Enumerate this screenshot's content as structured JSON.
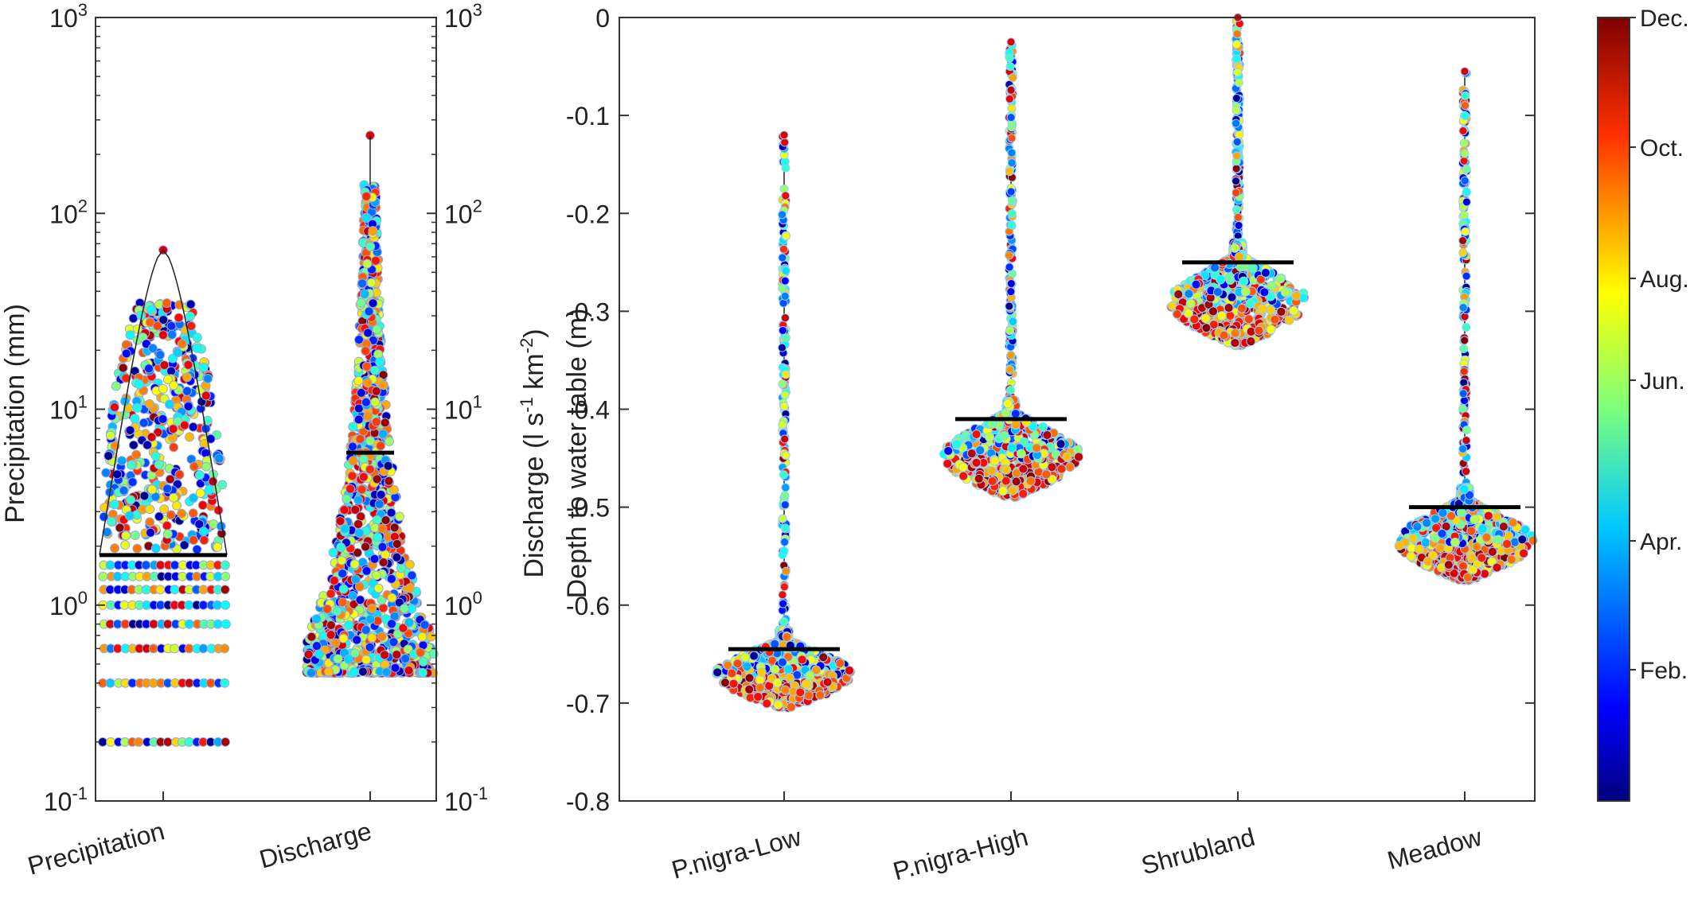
{
  "chart_data": [
    {
      "type": "scatter",
      "subtype": "violin-swarm",
      "ylabel_left": "Precipitation (mm)",
      "ylabel_right": "Discharge (l s-1 km-2)",
      "y_scale": "log",
      "ylim": [
        0.1,
        1000
      ],
      "yticks": [
        {
          "base": "10",
          "exp": "-1"
        },
        {
          "base": "10",
          "exp": "0"
        },
        {
          "base": "10",
          "exp": "1"
        },
        {
          "base": "10",
          "exp": "2"
        },
        {
          "base": "10",
          "exp": "3"
        }
      ],
      "categories": [
        "Precipitation",
        "Discharge"
      ],
      "series": [
        {
          "name": "Precipitation",
          "median": 1.8,
          "min": 0.2,
          "max": 65,
          "q_low": 0.2,
          "q_high": 30
        },
        {
          "name": "Discharge",
          "median": 6,
          "min": 0.45,
          "max": 250,
          "q_low": 0.5,
          "q_high": 100
        }
      ],
      "grid": false
    },
    {
      "type": "scatter",
      "subtype": "violin-swarm",
      "ylabel": "Depth to water table (m)",
      "ylim": [
        -0.8,
        0
      ],
      "yticks": [
        "0",
        "-0.1",
        "-0.2",
        "-0.3",
        "-0.4",
        "-0.5",
        "-0.6",
        "-0.7",
        "-0.8"
      ],
      "categories": [
        "P.nigra-Low",
        "P.nigra-High",
        "Shrubland",
        "Meadow"
      ],
      "series": [
        {
          "name": "P.nigra-Low",
          "median": -0.645,
          "min": -0.705,
          "max": -0.12
        },
        {
          "name": "P.nigra-High",
          "median": -0.41,
          "min": -0.49,
          "max": -0.025
        },
        {
          "name": "Shrubland",
          "median": -0.25,
          "min": -0.335,
          "max": 0.0
        },
        {
          "name": "Meadow",
          "median": -0.5,
          "min": -0.575,
          "max": -0.055
        }
      ],
      "grid": false
    }
  ],
  "colorbar": {
    "labels": [
      "Dec.",
      "Oct.",
      "Aug.",
      "Jun.",
      "Apr.",
      "Feb."
    ],
    "colormap": "jet"
  }
}
